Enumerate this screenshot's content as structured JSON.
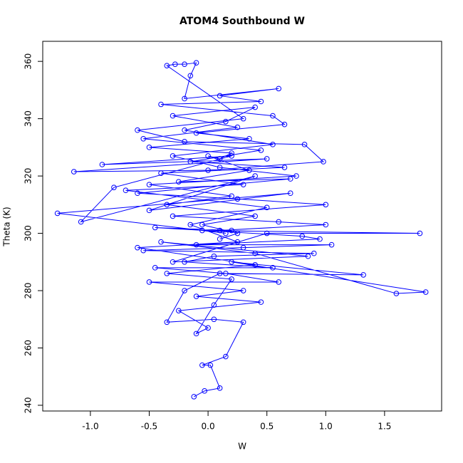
{
  "chart_data": {
    "type": "line",
    "title": "ATOM4 Southbound W",
    "x_label": "W",
    "y_label": "Theta (K)",
    "color": "#0000ff",
    "markers": true,
    "x": [
      -0.12,
      -0.03,
      0.1,
      0.02,
      -0.05,
      0.15,
      0.3,
      0.05,
      -0.35,
      -0.2,
      0.1,
      1.32,
      0.2,
      1.85,
      1.6,
      0.4,
      -0.4,
      0.85,
      -0.3,
      0.5,
      1.8,
      -0.05,
      0.15,
      -1.28,
      0.7,
      -0.5,
      0.4,
      -1.08,
      -0.8,
      0.2,
      -0.9,
      0.5,
      -1.14,
      0.0,
      0.98,
      0.82,
      -0.2,
      -0.6,
      0.3,
      -0.35,
      -0.28,
      -0.2,
      -0.1,
      -0.15,
      -0.2,
      0.6,
      0.1,
      0.45,
      -0.4,
      0.55,
      0.65,
      -0.1,
      0.35,
      -0.5,
      0.2,
      0.1,
      0.0,
      0.35,
      -0.25,
      0.7,
      -0.6,
      0.25,
      1.0,
      -0.3,
      0.6,
      1.0,
      0.1,
      0.2,
      -0.45,
      0.8,
      0.95,
      -0.1,
      1.05,
      0.3,
      -0.55,
      0.9,
      0.05,
      -0.2,
      0.55,
      -0.45,
      0.15,
      0.6,
      -0.5,
      0.3,
      -0.1,
      0.45,
      -0.25,
      0.0,
      -0.1,
      0.05,
      0.2,
      -0.35,
      0.4,
      -0.6,
      0.25,
      -0.15,
      0.5,
      -0.7,
      0.3,
      -0.4,
      0.65,
      -0.15,
      0.45,
      -0.55,
      0.25,
      -0.3,
      0.4,
      0.15,
      -0.2,
      0.55,
      -0.3,
      0.1,
      0.75,
      -0.5,
      0.2,
      -0.35,
      0.4,
      -0.05,
      0.25,
      0.1
    ],
    "values": [
      243,
      245,
      246,
      254,
      254,
      257,
      269,
      270,
      269,
      280,
      286,
      285.5,
      290,
      279.5,
      279,
      293,
      297,
      292,
      290,
      300,
      300,
      301,
      300,
      307,
      314,
      308,
      320,
      304,
      316,
      327,
      324,
      326,
      321.5,
      322,
      325,
      331,
      332,
      336,
      340,
      358.5,
      359,
      359,
      359.5,
      355,
      347,
      350.5,
      348,
      346,
      345,
      341,
      338,
      335,
      333,
      330,
      328,
      326,
      327,
      322,
      318,
      319,
      314,
      312,
      310,
      306,
      304,
      303,
      301,
      301,
      302,
      299,
      298,
      296,
      296,
      295,
      294,
      293,
      292,
      290,
      288,
      288,
      286,
      283,
      283,
      280,
      278,
      276,
      273,
      267,
      265,
      275,
      284,
      286,
      289,
      295,
      297,
      303,
      309,
      315,
      317,
      321,
      323,
      325,
      329,
      333,
      337,
      341,
      344,
      339,
      336,
      331,
      327,
      323,
      320,
      317,
      313,
      310,
      306,
      303,
      300,
      298
    ],
    "xlim": [
      -1.405,
      1.985
    ],
    "ylim": [
      238,
      367
    ],
    "xticks": [
      {
        "value": -1,
        "label": "-1.0"
      },
      -0.5,
      {
        "value": 0,
        "label": "0.0"
      },
      0.5,
      {
        "value": 1,
        "label": "1.0"
      },
      1.5
    ],
    "yticks": [
      240,
      260,
      280,
      300,
      320,
      340,
      360
    ]
  }
}
